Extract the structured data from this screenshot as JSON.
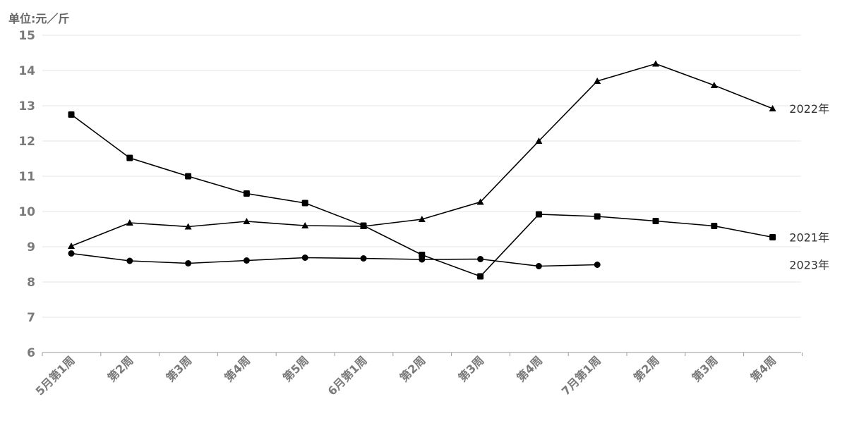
{
  "chart_data": {
    "type": "line",
    "title": "",
    "unit_label": "单位:元／斤",
    "xlabel": "",
    "ylabel": "",
    "ylim": [
      6,
      15
    ],
    "yticks": [
      6,
      7,
      8,
      9,
      10,
      11,
      12,
      13,
      14,
      15
    ],
    "grid": true,
    "categories": [
      "5月第1周",
      "第2周",
      "第3周",
      "第4周",
      "第5周",
      "6月第1周",
      "第2周",
      "第3周",
      "第4周",
      "7月第1周",
      "第2周",
      "第3周",
      "第4周"
    ],
    "series": [
      {
        "name": "2022年",
        "marker": "triangle",
        "color": "#000000",
        "values": [
          9.02,
          9.68,
          9.57,
          9.72,
          9.6,
          9.58,
          9.78,
          10.27,
          12.0,
          13.7,
          14.19,
          13.58,
          12.92
        ]
      },
      {
        "name": "2021年",
        "marker": "square",
        "color": "#000000",
        "values": [
          12.75,
          11.52,
          11.0,
          10.51,
          10.24,
          9.6,
          8.77,
          8.16,
          9.92,
          9.86,
          9.73,
          9.59,
          9.27
        ]
      },
      {
        "name": "2023年",
        "marker": "circle",
        "color": "#000000",
        "values": [
          8.81,
          8.6,
          8.53,
          8.61,
          8.69,
          8.67,
          8.64,
          8.65,
          8.45,
          8.49,
          null,
          null,
          null
        ]
      }
    ]
  }
}
